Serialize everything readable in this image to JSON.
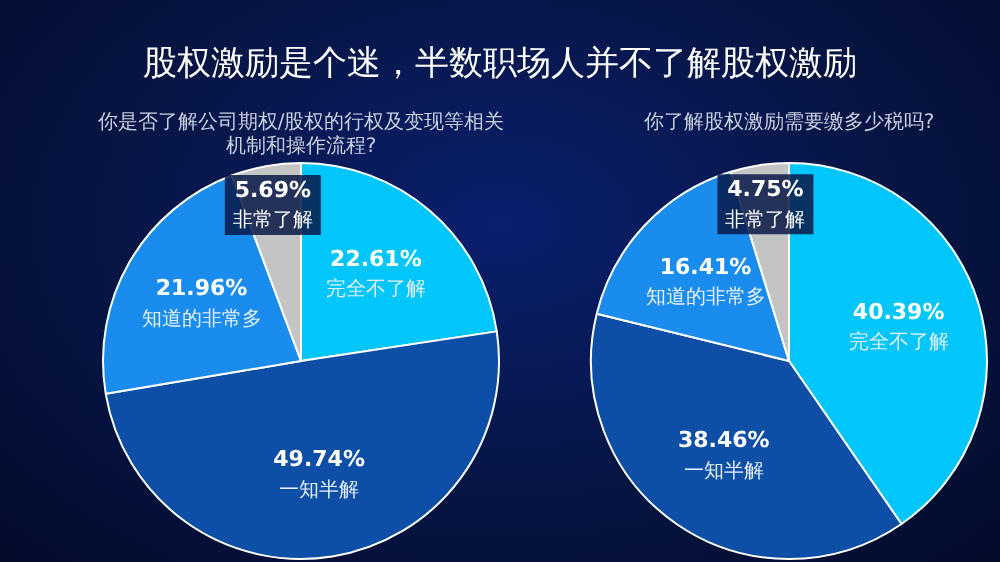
{
  "chart_data": [
    {
      "type": "pie",
      "title": "股权激励是个迷，半数职场人并不了解股权激励",
      "subtitle": "你是否了解公司期权/股权的行权及变现等相关机制和操作流程?",
      "categories": [
        "完全不了解",
        "一知半解",
        "知道的非常多",
        "非常了解"
      ],
      "values": [
        22.61,
        49.74,
        21.96,
        5.69
      ],
      "value_labels": [
        "22.61%",
        "49.74%",
        "21.96%",
        "5.69%"
      ],
      "colors": [
        "#00c6fb",
        "#0d4ea6",
        "#1a8cee",
        "#c4c4c4"
      ]
    },
    {
      "type": "pie",
      "subtitle": "你了解股权激励需要缴多少税吗?",
      "categories": [
        "完全不了解",
        "一知半解",
        "知道的非常多",
        "非常了解"
      ],
      "values": [
        40.39,
        38.46,
        16.41,
        4.75
      ],
      "value_labels": [
        "40.39%",
        "38.46%",
        "16.41%",
        "4.75%"
      ],
      "colors": [
        "#00c6fb",
        "#0d4ea6",
        "#1a8cee",
        "#c4c4c4"
      ]
    }
  ]
}
